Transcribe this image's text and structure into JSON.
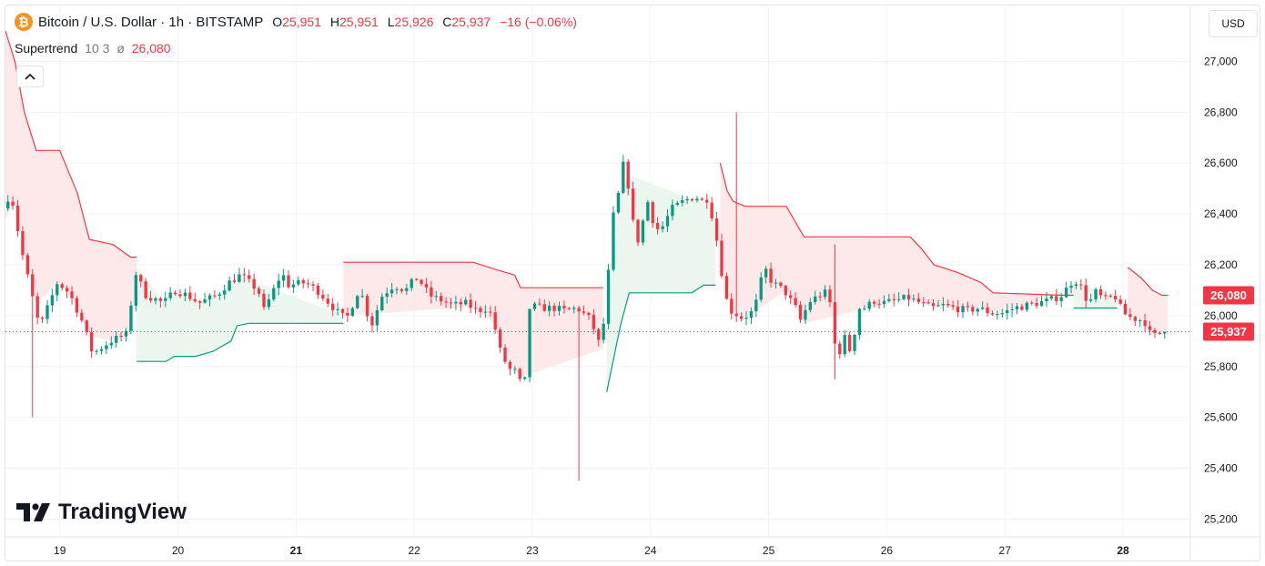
{
  "header": {
    "coin_icon": "bitcoin-icon",
    "title": "Bitcoin / U.S. Dollar · 1h · BITSTAMP",
    "ohlc": [
      {
        "k": "O",
        "v": "25,951"
      },
      {
        "k": "H",
        "v": "25,951"
      },
      {
        "k": "L",
        "v": "25,926"
      },
      {
        "k": "C",
        "v": "25,937"
      }
    ],
    "change": "−16 (−0.06%)"
  },
  "indicator": {
    "name": "Supertrend",
    "params": "10 3",
    "symbol": "ø",
    "value": "26,080"
  },
  "currency_button": "USD",
  "logo_text": "TradingView",
  "colors": {
    "up": "#089981",
    "down": "#f23645",
    "up_fill": "#e9f5ec",
    "down_fill": "#fde7e8",
    "grid": "#f0f3fa",
    "text": "#131722"
  },
  "chart_data": {
    "type": "candlestick",
    "title": "Bitcoin / U.S. Dollar · 1h · BITSTAMP",
    "xlabel": "",
    "ylabel": "",
    "x_ticks": [
      {
        "label": "19",
        "day": 19,
        "bold": false
      },
      {
        "label": "20",
        "day": 20,
        "bold": false
      },
      {
        "label": "21",
        "day": 21,
        "bold": true
      },
      {
        "label": "22",
        "day": 22,
        "bold": false
      },
      {
        "label": "23",
        "day": 23,
        "bold": false
      },
      {
        "label": "24",
        "day": 24,
        "bold": false
      },
      {
        "label": "25",
        "day": 25,
        "bold": false
      },
      {
        "label": "26",
        "day": 26,
        "bold": false
      },
      {
        "label": "27",
        "day": 27,
        "bold": false
      },
      {
        "label": "28",
        "day": 28,
        "bold": true
      }
    ],
    "y_ticks": [
      {
        "label": "25,200",
        "value": 25200
      },
      {
        "label": "25,400",
        "value": 25400
      },
      {
        "label": "25,600",
        "value": 25600
      },
      {
        "label": "25,800",
        "value": 25800
      },
      {
        "label": "26,000",
        "value": 26000
      },
      {
        "label": "26,200",
        "value": 26200
      },
      {
        "label": "26,400",
        "value": 26400
      },
      {
        "label": "26,600",
        "value": 26600
      },
      {
        "label": "26,800",
        "value": 26800
      },
      {
        "label": "27,000",
        "value": 27000
      }
    ],
    "y_range": [
      25130,
      27220
    ],
    "x_range": [
      18.54,
      28.57
    ],
    "price_labels": [
      {
        "label": "26,080",
        "value": 26080,
        "color": "#f23645"
      },
      {
        "label": "25,937",
        "value": 25937,
        "color": "#f23645"
      }
    ],
    "last_close": 25937,
    "supertrend": [
      {
        "trend": "down",
        "points": [
          [
            18.54,
            27120
          ],
          [
            18.62,
            27000
          ],
          [
            18.7,
            26800
          ],
          [
            18.8,
            26650
          ],
          [
            19.0,
            26650
          ],
          [
            19.15,
            26480
          ],
          [
            19.25,
            26300
          ],
          [
            19.45,
            26280
          ],
          [
            19.6,
            26230
          ],
          [
            19.65,
            26230
          ]
        ]
      },
      {
        "trend": "up",
        "points": [
          [
            19.65,
            25820
          ],
          [
            19.9,
            25820
          ],
          [
            19.97,
            25840
          ],
          [
            20.15,
            25840
          ],
          [
            20.3,
            25860
          ],
          [
            20.45,
            25900
          ],
          [
            20.5,
            25960
          ],
          [
            20.6,
            25970
          ],
          [
            21.4,
            25970
          ]
        ]
      },
      {
        "trend": "down",
        "points": [
          [
            21.4,
            26210
          ],
          [
            22.5,
            26210
          ],
          [
            22.7,
            26180
          ],
          [
            22.85,
            26160
          ],
          [
            22.9,
            26110
          ],
          [
            23.6,
            26110
          ]
        ]
      },
      {
        "trend": "up",
        "points": [
          [
            23.63,
            25700
          ],
          [
            23.75,
            25970
          ],
          [
            23.82,
            26090
          ],
          [
            24.35,
            26090
          ],
          [
            24.45,
            26120
          ],
          [
            24.55,
            26120
          ]
        ]
      },
      {
        "trend": "down",
        "points": [
          [
            24.59,
            26600
          ],
          [
            24.65,
            26490
          ],
          [
            24.7,
            26450
          ],
          [
            24.8,
            26430
          ],
          [
            25.15,
            26430
          ],
          [
            25.3,
            26310
          ],
          [
            26.2,
            26310
          ],
          [
            26.3,
            26260
          ],
          [
            26.4,
            26200
          ],
          [
            26.6,
            26170
          ],
          [
            26.8,
            26130
          ],
          [
            26.9,
            26090
          ],
          [
            27.5,
            26080
          ],
          [
            27.6,
            26080
          ]
        ]
      },
      {
        "trend": "up",
        "points": [
          [
            27.58,
            26030
          ],
          [
            27.95,
            26030
          ]
        ]
      },
      {
        "trend": "down",
        "points": [
          [
            28.04,
            26190
          ],
          [
            28.15,
            26150
          ],
          [
            28.25,
            26100
          ],
          [
            28.33,
            26080
          ],
          [
            28.38,
            26080
          ]
        ]
      }
    ],
    "anchors": [
      [
        18.54,
        26380
      ],
      [
        18.6,
        26500
      ],
      [
        18.7,
        26250
      ],
      [
        18.85,
        25950
      ],
      [
        19.0,
        26130
      ],
      [
        19.1,
        26090
      ],
      [
        19.2,
        25990
      ],
      [
        19.3,
        25850
      ],
      [
        19.45,
        25900
      ],
      [
        19.55,
        25920
      ],
      [
        19.6,
        25930
      ],
      [
        19.65,
        26180
      ],
      [
        19.75,
        26080
      ],
      [
        19.9,
        26050
      ],
      [
        20.0,
        26100
      ],
      [
        20.1,
        26080
      ],
      [
        20.2,
        26050
      ],
      [
        20.35,
        26080
      ],
      [
        20.45,
        26130
      ],
      [
        20.55,
        26160
      ],
      [
        20.7,
        26100
      ],
      [
        20.75,
        26020
      ],
      [
        20.9,
        26170
      ],
      [
        20.95,
        26120
      ],
      [
        21.1,
        26130
      ],
      [
        21.2,
        26100
      ],
      [
        21.3,
        26050
      ],
      [
        21.4,
        26000
      ],
      [
        21.45,
        25990
      ],
      [
        21.55,
        26100
      ],
      [
        21.6,
        26060
      ],
      [
        21.65,
        25950
      ],
      [
        21.75,
        26080
      ],
      [
        21.85,
        26120
      ],
      [
        21.95,
        26100
      ],
      [
        22.0,
        26130
      ],
      [
        22.05,
        26150
      ],
      [
        22.15,
        26080
      ],
      [
        22.25,
        26060
      ],
      [
        22.35,
        26040
      ],
      [
        22.45,
        26050
      ],
      [
        22.55,
        26020
      ],
      [
        22.65,
        26030
      ],
      [
        22.7,
        25960
      ],
      [
        22.75,
        25860
      ],
      [
        22.82,
        25790
      ],
      [
        22.88,
        25780
      ],
      [
        22.95,
        25700
      ],
      [
        23.0,
        26040
      ],
      [
        23.1,
        26030
      ],
      [
        23.2,
        26030
      ],
      [
        23.3,
        26020
      ],
      [
        23.4,
        26030
      ],
      [
        23.5,
        25990
      ],
      [
        23.55,
        25940
      ],
      [
        23.6,
        25870
      ],
      [
        23.65,
        26080
      ],
      [
        23.7,
        26380
      ],
      [
        23.75,
        26480
      ],
      [
        23.8,
        26620
      ],
      [
        23.85,
        26450
      ],
      [
        23.9,
        26270
      ],
      [
        24.0,
        26450
      ],
      [
        24.05,
        26360
      ],
      [
        24.1,
        26330
      ],
      [
        24.2,
        26420
      ],
      [
        24.3,
        26450
      ],
      [
        24.4,
        26470
      ],
      [
        24.45,
        26450
      ],
      [
        24.5,
        26460
      ],
      [
        24.55,
        26380
      ],
      [
        24.6,
        26250
      ],
      [
        24.65,
        26080
      ],
      [
        24.7,
        26020
      ],
      [
        24.8,
        25990
      ],
      [
        24.9,
        26020
      ],
      [
        24.95,
        26130
      ],
      [
        25.0,
        26180
      ],
      [
        25.05,
        26130
      ],
      [
        25.15,
        26100
      ],
      [
        25.25,
        26030
      ],
      [
        25.3,
        25970
      ],
      [
        25.35,
        26050
      ],
      [
        25.45,
        26080
      ],
      [
        25.5,
        26090
      ],
      [
        25.55,
        26040
      ],
      [
        25.6,
        25800
      ],
      [
        25.65,
        25930
      ],
      [
        25.72,
        25850
      ],
      [
        25.78,
        26030
      ],
      [
        25.85,
        26030
      ],
      [
        25.9,
        26060
      ],
      [
        26.0,
        26050
      ],
      [
        26.1,
        26060
      ],
      [
        26.2,
        26070
      ],
      [
        26.3,
        26050
      ],
      [
        26.4,
        26030
      ],
      [
        26.5,
        26040
      ],
      [
        26.6,
        26030
      ],
      [
        26.7,
        26020
      ],
      [
        26.8,
        26030
      ],
      [
        26.9,
        26010
      ],
      [
        27.0,
        26010
      ],
      [
        27.1,
        26030
      ],
      [
        27.2,
        26040
      ],
      [
        27.3,
        26050
      ],
      [
        27.4,
        26060
      ],
      [
        27.5,
        26080
      ],
      [
        27.6,
        26140
      ],
      [
        27.65,
        26130
      ],
      [
        27.7,
        26070
      ],
      [
        27.75,
        26060
      ],
      [
        27.8,
        26100
      ],
      [
        27.85,
        26060
      ],
      [
        27.95,
        26080
      ],
      [
        28.0,
        26030
      ],
      [
        28.05,
        26000
      ],
      [
        28.1,
        25990
      ],
      [
        28.2,
        25980
      ],
      [
        28.25,
        25930
      ],
      [
        28.3,
        25920
      ],
      [
        28.35,
        25937
      ]
    ],
    "spikes": [
      {
        "x": 18.78,
        "low": 25600
      },
      {
        "x": 23.39,
        "low": 25350
      },
      {
        "x": 24.73,
        "high": 26800
      },
      {
        "x": 25.58,
        "high": 26280
      },
      {
        "x": 25.58,
        "low": 25750
      }
    ]
  }
}
